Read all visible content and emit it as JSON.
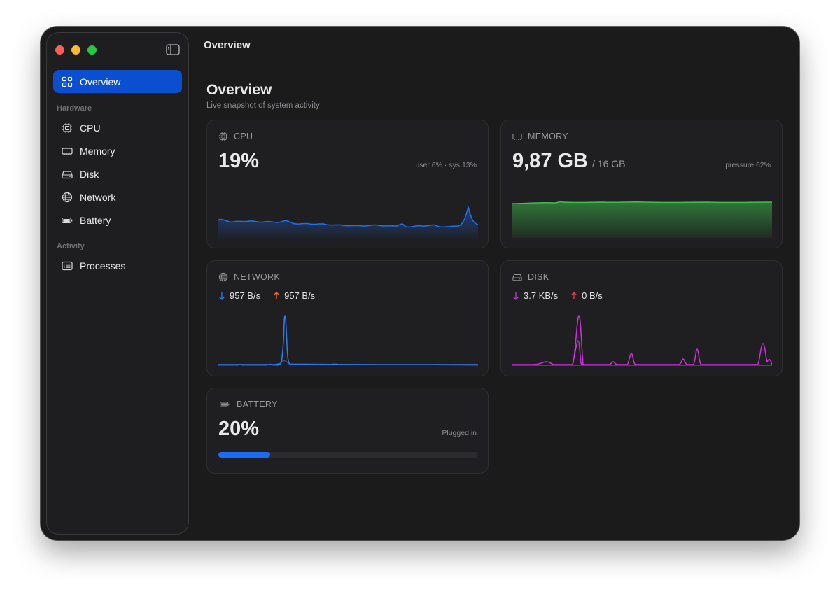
{
  "window": {
    "title": "Overview"
  },
  "sidebar": {
    "items": [
      {
        "label": "Overview",
        "icon": "grid-icon",
        "active": true
      },
      {
        "label": "CPU",
        "icon": "cpu-chip-icon"
      },
      {
        "label": "Memory",
        "icon": "memory-icon"
      },
      {
        "label": "Disk",
        "icon": "disk-icon"
      },
      {
        "label": "Network",
        "icon": "globe-icon"
      },
      {
        "label": "Battery",
        "icon": "battery-icon"
      },
      {
        "label": "Processes",
        "icon": "list-icon"
      }
    ],
    "sections": {
      "hardware": "Hardware",
      "activity": "Activity"
    }
  },
  "page": {
    "title": "Overview",
    "subtitle": "Live snapshot of system activity"
  },
  "cards": {
    "cpu": {
      "title": "CPU",
      "value": "19%",
      "note": "user 6% · sys 13%",
      "color": "#1e6ff5"
    },
    "memory": {
      "title": "MEMORY",
      "value": "9,87 GB",
      "unit": "/ 16 GB",
      "note": "pressure 62%",
      "color": "#3fbf4a"
    },
    "network": {
      "title": "NETWORK",
      "down": "957 B/s",
      "up": "957 B/s",
      "down_color": "#2f7bf5",
      "up_color": "#f0733a",
      "color": "#2f7bf5"
    },
    "disk": {
      "title": "DISK",
      "read": "3.7 KB/s",
      "write": "0 B/s",
      "read_color": "#c43ad8",
      "write_color": "#e8414a",
      "color": "#d02fe0"
    },
    "battery": {
      "title": "BATTERY",
      "value": "20%",
      "note": "Plugged in",
      "level": 0.2,
      "color": "#1b6cf2"
    }
  }
}
